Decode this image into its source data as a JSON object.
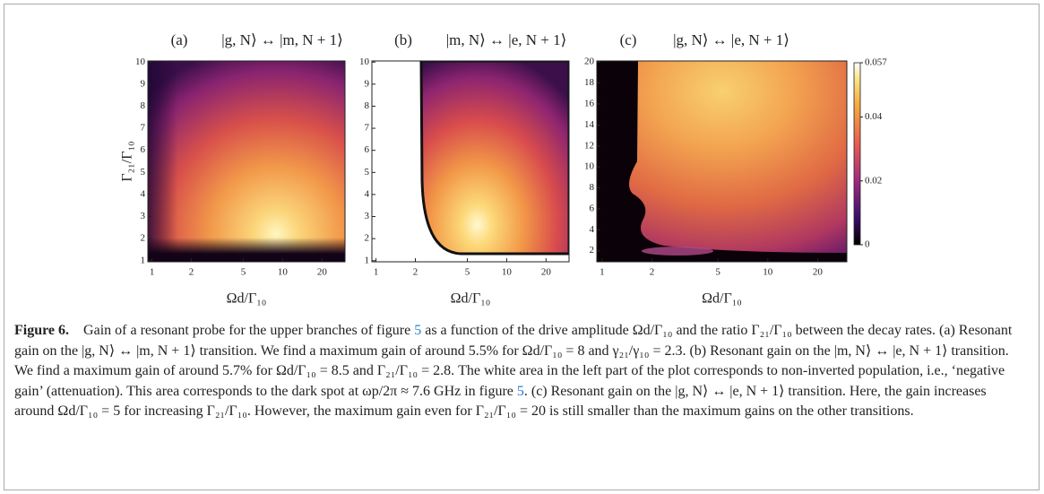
{
  "chart_data": [
    {
      "type": "heatmap",
      "panel_label": "(a)",
      "title": "|g, N⟩ ↔ |m, N + 1⟩",
      "xlabel": "Ωd/Γ₁₀",
      "ylabel": "Γ₂₁/Γ₁₀",
      "xscale": "log",
      "xlim": [
        0.93,
        30
      ],
      "xticks": [
        1,
        2,
        5,
        10,
        20
      ],
      "ylim": [
        0.95,
        10.05
      ],
      "yticks": [
        1,
        2,
        3,
        4,
        5,
        6,
        7,
        8,
        9,
        10
      ]
    },
    {
      "type": "heatmap",
      "panel_label": "(b)",
      "title": "|m, N⟩ ↔ |e, N + 1⟩",
      "xlabel": "Ωd/Γ₁₀",
      "xscale": "log",
      "xlim": [
        0.93,
        30
      ],
      "xticks": [
        1,
        2,
        5,
        10,
        20
      ],
      "ylim": [
        0.95,
        10.05
      ],
      "yticks": [
        1,
        2,
        3,
        4,
        5,
        6,
        7,
        8,
        9,
        10
      ]
    },
    {
      "type": "heatmap",
      "panel_label": "(c)",
      "title": "|g, N⟩ ↔ |e, N + 1⟩",
      "xlabel": "Ωd/Γ₁₀",
      "xscale": "log",
      "xlim": [
        0.93,
        30
      ],
      "xticks": [
        1,
        2,
        5,
        10,
        20
      ],
      "ylim": [
        0.95,
        20.1
      ],
      "yticks": [
        2,
        4,
        6,
        8,
        10,
        12,
        14,
        16,
        18,
        20
      ],
      "colorbar": {
        "lim": [
          0,
          0.057
        ],
        "ticks": [
          0,
          0.02,
          0.04,
          0.057
        ]
      }
    }
  ],
  "caption": {
    "label": "Figure 6.",
    "text": [
      "Gain of a resonant probe for the upper branches of figure ",
      "5",
      " as a function of the drive amplitude Ωd/Γ₁₀ and the ratio Γ₂₁/Γ₁₀ between the decay rates. (a) Resonant gain on the |g, N⟩ ↔ |m, N + 1⟩ transition. We find a maximum gain of around 5.5% for Ωd/Γ₁₀ = 8 and γ₂₁/γ₁₀ = 2.3. (b) Resonant gain on the |m, N⟩ ↔ |e, N + 1⟩ transition. We find a maximum gain of around 5.7% for Ωd/Γ₁₀ = 8.5 and Γ₂₁/Γ₁₀ = 2.8. The white area in the left part of the plot corresponds to non-inverted population, i.e., ‘negative gain’ (attenuation). This area corresponds to the dark spot at ωp/2π ≈ 7.6 GHz in figure ",
      "5",
      ". (c) Resonant gain on the |g, N⟩ ↔ |e, N + 1⟩ transition. Here, the gain increases around Ωd/Γ₁₀ = 5 for increasing Γ₂₁/Γ₁₀. However, the maximum gain even for Γ₂₁/Γ₁₀ = 20 is still smaller than the maximum gains on the other transitions."
    ]
  }
}
